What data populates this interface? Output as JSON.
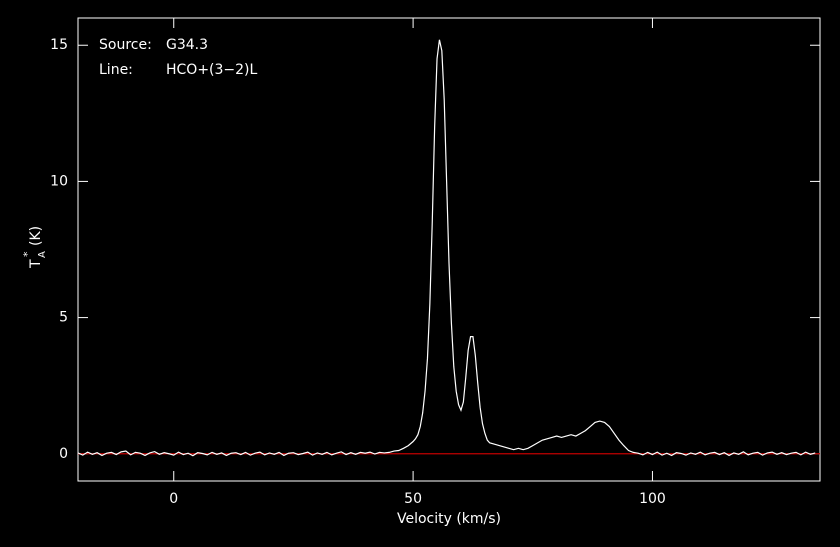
{
  "chart_data": {
    "type": "line",
    "xlabel": "Velocity (km/s)",
    "ylabel": {
      "main": "T",
      "sub": "A",
      "sup": "*",
      "unit": "(K)"
    },
    "annotations": [
      {
        "key": "Source:",
        "value": "G34.3"
      },
      {
        "key": "Line:",
        "value": "HCO+(3−2)L"
      }
    ],
    "xlim": [
      -20,
      135
    ],
    "ylim": [
      -1,
      16
    ],
    "xticks": [
      0,
      50,
      100
    ],
    "yticks": [
      0,
      5,
      10,
      15
    ],
    "baseline": {
      "value": 0,
      "color": "#c00000"
    },
    "x": [
      -20,
      -19,
      -18,
      -17,
      -16,
      -15,
      -14,
      -13,
      -12,
      -11,
      -10,
      -9,
      -8,
      -7,
      -6,
      -5,
      -4,
      -3,
      -2,
      -1,
      0,
      1,
      2,
      3,
      4,
      5,
      6,
      7,
      8,
      9,
      10,
      11,
      12,
      13,
      14,
      15,
      16,
      17,
      18,
      19,
      20,
      21,
      22,
      23,
      24,
      25,
      26,
      27,
      28,
      29,
      30,
      31,
      32,
      33,
      34,
      35,
      36,
      37,
      38,
      39,
      40,
      41,
      42,
      43,
      44,
      45,
      46,
      47,
      48,
      49,
      50,
      50.5,
      51,
      51.5,
      52,
      52.5,
      53,
      53.5,
      54,
      54.5,
      55,
      55.5,
      56,
      56.5,
      57,
      57.5,
      58,
      58.5,
      59,
      59.5,
      60,
      60.5,
      61,
      61.5,
      62,
      62.5,
      63,
      63.5,
      64,
      64.5,
      65,
      65.5,
      66,
      67,
      68,
      69,
      70,
      71,
      72,
      73,
      74,
      75,
      76,
      77,
      78,
      79,
      80,
      81,
      82,
      83,
      84,
      85,
      86,
      87,
      88,
      89,
      90,
      91,
      92,
      93,
      94,
      95,
      96,
      97,
      98,
      99,
      100,
      101,
      102,
      103,
      104,
      105,
      106,
      107,
      108,
      109,
      110,
      111,
      112,
      113,
      114,
      115,
      116,
      117,
      118,
      119,
      120,
      121,
      122,
      123,
      124,
      125,
      126,
      127,
      128,
      129,
      130,
      131,
      132,
      133,
      134
    ],
    "series": [
      {
        "color": "#ffffff",
        "values": [
          0.03,
          -0.05,
          0.06,
          -0.02,
          0.04,
          -0.06,
          0.02,
          0.05,
          -0.03,
          0.07,
          0.1,
          -0.04,
          0.05,
          0.02,
          -0.06,
          0.03,
          0.08,
          -0.02,
          0.04,
          0.0,
          -0.05,
          0.06,
          -0.03,
          0.02,
          -0.07,
          0.04,
          0.01,
          -0.04,
          0.05,
          -0.02,
          0.03,
          -0.06,
          0.02,
          0.04,
          -0.03,
          0.05,
          -0.05,
          0.02,
          0.06,
          -0.04,
          0.03,
          -0.02,
          0.05,
          -0.06,
          0.02,
          0.04,
          -0.03,
          0.01,
          0.06,
          -0.05,
          0.03,
          -0.02,
          0.05,
          -0.04,
          0.02,
          0.07,
          -0.03,
          0.04,
          -0.02,
          0.05,
          0.02,
          0.06,
          -0.01,
          0.05,
          0.03,
          0.05,
          0.1,
          0.12,
          0.2,
          0.3,
          0.45,
          0.55,
          0.7,
          1.0,
          1.5,
          2.3,
          3.5,
          5.5,
          8.5,
          12,
          14.5,
          15.2,
          14.8,
          13,
          10,
          7,
          4.8,
          3.2,
          2.3,
          1.8,
          1.6,
          1.9,
          2.8,
          3.8,
          4.3,
          4.3,
          3.6,
          2.6,
          1.7,
          1.1,
          0.75,
          0.5,
          0.4,
          0.35,
          0.3,
          0.25,
          0.2,
          0.15,
          0.2,
          0.15,
          0.2,
          0.3,
          0.4,
          0.5,
          0.55,
          0.6,
          0.65,
          0.6,
          0.65,
          0.7,
          0.65,
          0.75,
          0.85,
          1.0,
          1.15,
          1.2,
          1.15,
          1.0,
          0.75,
          0.5,
          0.3,
          0.12,
          0.05,
          0.02,
          -0.04,
          0.05,
          -0.03,
          0.06,
          -0.05,
          0.02,
          -0.06,
          0.04,
          0.01,
          -0.05,
          0.03,
          -0.02,
          0.06,
          -0.04,
          0.02,
          0.05,
          -0.03,
          0.04,
          -0.06,
          0.03,
          -0.02,
          0.07,
          -0.04,
          0.02,
          0.05,
          -0.05,
          0.03,
          0.06,
          -0.02,
          0.04,
          -0.03,
          0.02,
          0.05,
          -0.04,
          0.06,
          -0.02,
          0.03
        ]
      }
    ]
  }
}
